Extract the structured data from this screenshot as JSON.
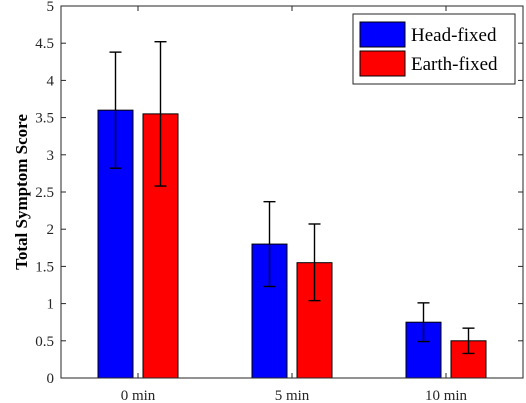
{
  "chart_data": {
    "type": "bar",
    "title": "",
    "xlabel": "",
    "ylabel": "Total Symptom Score",
    "categories": [
      "0 min",
      "5 min",
      "10 min"
    ],
    "series": [
      {
        "name": "Head-fixed",
        "color": "#0000ff",
        "values": [
          3.6,
          1.8,
          0.75
        ],
        "error_low": [
          2.82,
          1.23,
          0.49
        ],
        "error_high": [
          4.38,
          2.37,
          1.01
        ]
      },
      {
        "name": "Earth-fixed",
        "color": "#ff0000",
        "values": [
          3.55,
          1.55,
          0.5
        ],
        "error_low": [
          2.58,
          1.04,
          0.33
        ],
        "error_high": [
          4.52,
          2.07,
          0.67
        ]
      }
    ],
    "ylim": [
      0,
      5
    ],
    "yticks": [
      "0",
      "0.5",
      "1",
      "1.5",
      "2",
      "2.5",
      "3",
      "3.5",
      "4",
      "4.5",
      "5"
    ],
    "grid": false,
    "legend_position": "top-right"
  }
}
